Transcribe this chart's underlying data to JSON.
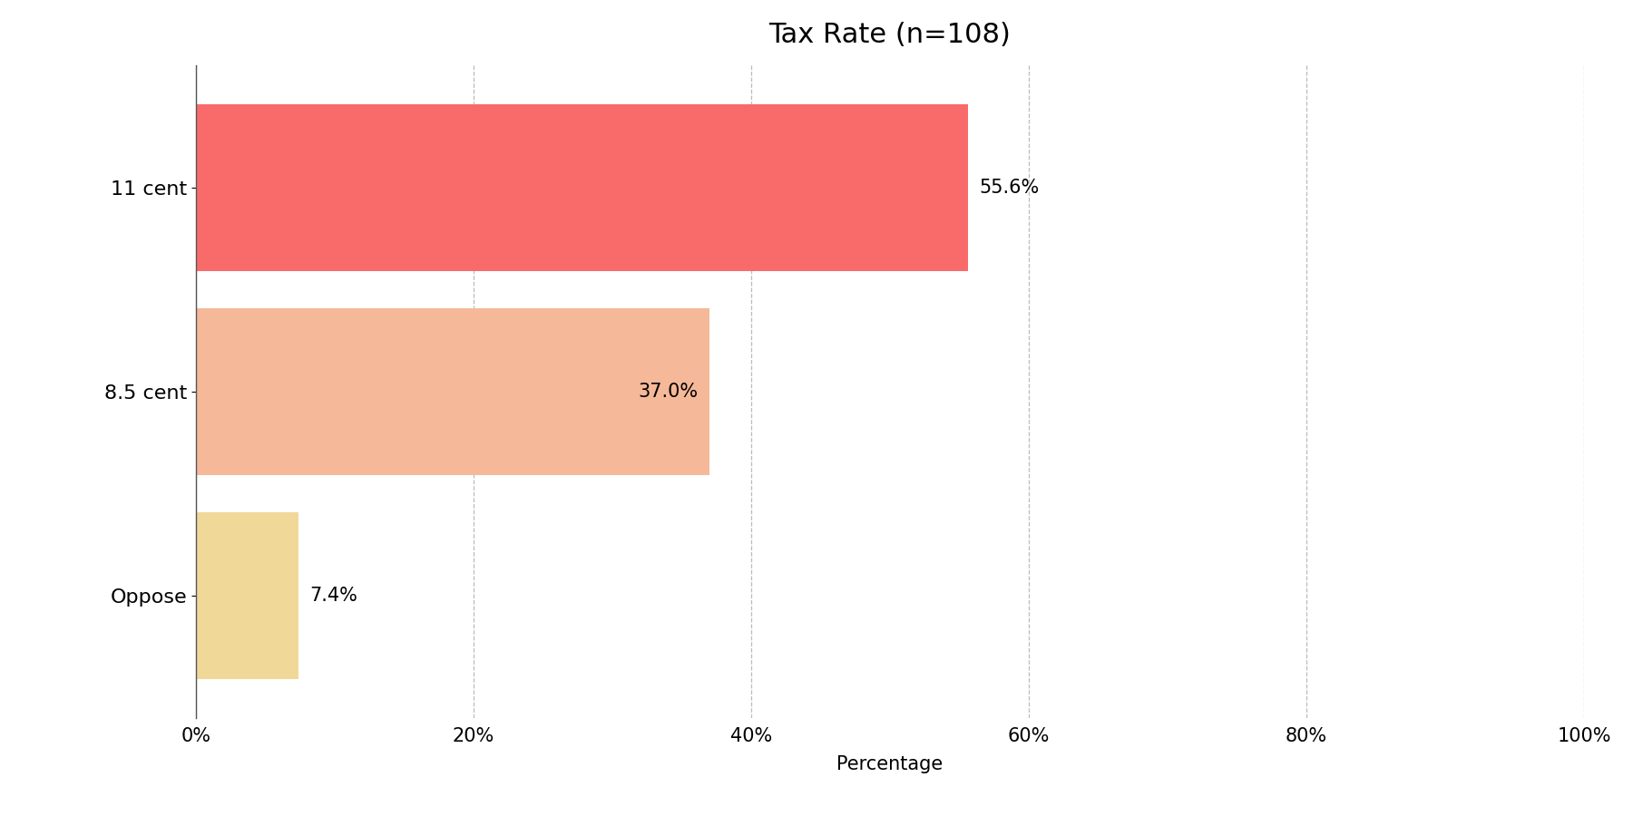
{
  "categories": [
    "11 cent",
    "8.5 cent",
    "Oppose"
  ],
  "values": [
    55.6,
    37.0,
    7.4
  ],
  "bar_colors": [
    "#f96b6b",
    "#f5b899",
    "#f0d899"
  ],
  "title": "Tax Rate (n=108)",
  "xlabel": "Percentage",
  "xlim": [
    0,
    100
  ],
  "title_fontsize": 22,
  "label_fontsize": 16,
  "tick_fontsize": 15,
  "bar_height": 0.82,
  "background_color": "#ffffff",
  "grid_color": "#bbbbbb",
  "annotation_fontsize": 15,
  "annotation_offsets": [
    1.0,
    1.0,
    1.0
  ],
  "annotation_inside": [
    false,
    true,
    false
  ]
}
